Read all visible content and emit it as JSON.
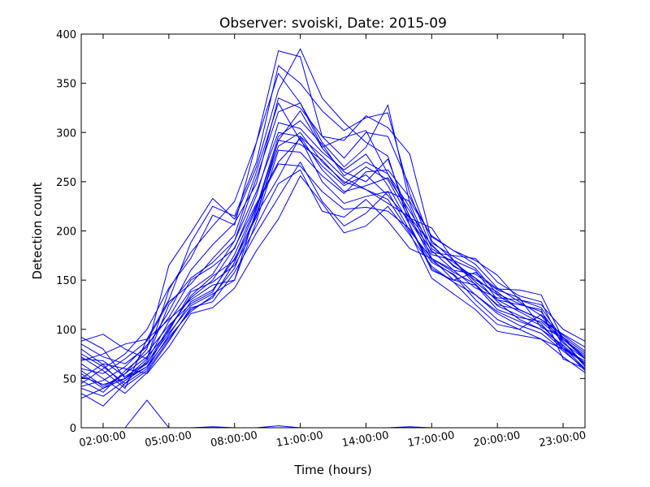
{
  "chart_data": {
    "type": "line",
    "title": "Observer: svoiski, Date: 2015-09",
    "xlabel": "Time (hours)",
    "ylabel": "Detection count",
    "xlim": [
      1,
      24
    ],
    "ylim": [
      0,
      400
    ],
    "x_ticks": [
      2,
      5,
      8,
      11,
      14,
      17,
      20,
      23
    ],
    "x_tick_labels": [
      "02:00:00",
      "05:00:00",
      "08:00:00",
      "11:00:00",
      "14:00:00",
      "17:00:00",
      "20:00:00",
      "23:00:00"
    ],
    "y_ticks": [
      0,
      50,
      100,
      150,
      200,
      250,
      300,
      350,
      400
    ],
    "y_tick_labels": [
      "0",
      "50",
      "100",
      "150",
      "200",
      "250",
      "300",
      "350",
      "400"
    ],
    "line_color": "#0000ff",
    "grid": false,
    "x": [
      1,
      2,
      3,
      4,
      5,
      6,
      7,
      8,
      9,
      10,
      11,
      12,
      13,
      14,
      15,
      16,
      17,
      18,
      19,
      20,
      21,
      22,
      23,
      24
    ],
    "series": [
      {
        "values": [
          92,
          80,
          50,
          70,
          140,
          178,
          205,
          230,
          290,
          383,
          377,
          296,
          292,
          317,
          305,
          278,
          190,
          170,
          160,
          130,
          125,
          120,
          70,
          60
        ]
      },
      {
        "values": [
          58,
          42,
          55,
          80,
          165,
          198,
          233,
          212,
          265,
          343,
          385,
          335,
          310,
          290,
          276,
          205,
          160,
          150,
          158,
          141,
          140,
          135,
          90,
          72
        ]
      },
      {
        "values": [
          72,
          58,
          40,
          90,
          130,
          188,
          225,
          215,
          270,
          368,
          350,
          322,
          302,
          315,
          320,
          238,
          182,
          168,
          152,
          128,
          110,
          100,
          80,
          66
        ]
      },
      {
        "values": [
          45,
          60,
          75,
          100,
          142,
          172,
          216,
          206,
          290,
          360,
          330,
          285,
          295,
          302,
          258,
          215,
          170,
          155,
          130,
          110,
          100,
          90,
          80,
          58
        ]
      },
      {
        "values": [
          88,
          95,
          80,
          70,
          125,
          152,
          168,
          190,
          254,
          321,
          330,
          290,
          265,
          285,
          328,
          228,
          178,
          175,
          172,
          148,
          134,
          128,
          82,
          60
        ]
      },
      {
        "values": [
          68,
          75,
          85,
          90,
          110,
          130,
          145,
          150,
          222,
          292,
          322,
          284,
          260,
          250,
          273,
          213,
          203,
          170,
          145,
          125,
          120,
          110,
          90,
          70
        ]
      },
      {
        "values": [
          55,
          40,
          50,
          65,
          102,
          132,
          150,
          183,
          228,
          270,
          294,
          250,
          228,
          235,
          240,
          230,
          195,
          180,
          170,
          155,
          130,
          125,
          100,
          88
        ]
      },
      {
        "values": [
          40,
          32,
          48,
          62,
          92,
          118,
          134,
          162,
          217,
          254,
          296,
          262,
          240,
          246,
          254,
          220,
          185,
          165,
          150,
          138,
          120,
          110,
          95,
          82
        ]
      },
      {
        "values": [
          65,
          50,
          35,
          56,
          88,
          122,
          128,
          158,
          198,
          234,
          270,
          230,
          205,
          218,
          240,
          200,
          172,
          160,
          156,
          140,
          132,
          102,
          92,
          76
        ]
      },
      {
        "values": [
          30,
          40,
          55,
          72,
          98,
          138,
          148,
          165,
          205,
          248,
          262,
          220,
          214,
          232,
          210,
          182,
          172,
          150,
          145,
          120,
          112,
          108,
          88,
          62
        ]
      },
      {
        "values": [
          50,
          65,
          60,
          55,
          82,
          116,
          122,
          142,
          180,
          212,
          256,
          228,
          198,
          205,
          225,
          196,
          164,
          148,
          125,
          105,
          100,
          115,
          92,
          70
        ]
      },
      {
        "values": [
          75,
          62,
          45,
          60,
          94,
          128,
          140,
          172,
          214,
          292,
          288,
          272,
          248,
          265,
          252,
          212,
          180,
          160,
          142,
          132,
          130,
          122,
          90,
          74
        ]
      },
      {
        "values": [
          35,
          22,
          45,
          68,
          108,
          140,
          156,
          190,
          240,
          300,
          296,
          276,
          254,
          242,
          232,
          198,
          152,
          136,
          120,
          98,
          94,
          90,
          72,
          56
        ]
      },
      {
        "values": [
          85,
          72,
          65,
          82,
          118,
          160,
          186,
          208,
          248,
          335,
          325,
          296,
          274,
          300,
          296,
          245,
          188,
          174,
          162,
          136,
          126,
          118,
          88,
          64
        ]
      },
      {
        "values": [
          60,
          55,
          70,
          88,
          128,
          146,
          172,
          196,
          260,
          330,
          292,
          266,
          246,
          257,
          236,
          210,
          176,
          170,
          148,
          130,
          118,
          106,
          80,
          68
        ]
      },
      {
        "values": [
          48,
          36,
          58,
          76,
          104,
          126,
          138,
          176,
          226,
          268,
          266,
          240,
          222,
          224,
          220,
          202,
          168,
          156,
          135,
          116,
          104,
          96,
          78,
          60
        ]
      },
      {
        "values": [
          70,
          68,
          52,
          66,
          96,
          124,
          136,
          150,
          210,
          282,
          280,
          256,
          238,
          260,
          262,
          234,
          194,
          180,
          166,
          142,
          128,
          114,
          86,
          70
        ]
      },
      {
        "values": [
          42,
          48,
          62,
          84,
          112,
          150,
          164,
          182,
          236,
          310,
          304,
          280,
          262,
          278,
          246,
          206,
          162,
          148,
          135,
          118,
          108,
          100,
          84,
          64
        ]
      },
      {
        "values": [
          80,
          64,
          42,
          58,
          90,
          120,
          132,
          168,
          218,
          286,
          300,
          270,
          250,
          242,
          228,
          214,
          186,
          164,
          152,
          135,
          120,
          110,
          94,
          78
        ]
      },
      {
        "values": [
          52,
          44,
          50,
          62,
          100,
          134,
          154,
          170,
          224,
          296,
          312,
          288,
          256,
          270,
          258,
          224,
          172,
          158,
          146,
          124,
          114,
          104,
          82,
          66
        ]
      },
      {
        "values": [
          0,
          0,
          0,
          0,
          0,
          0,
          0,
          0,
          0,
          0,
          0,
          0,
          0,
          0,
          0,
          0,
          0,
          0,
          0,
          0,
          0,
          0,
          0,
          0
        ]
      },
      {
        "values": [
          0,
          0,
          0,
          28,
          0,
          0,
          1,
          0,
          0,
          2,
          0,
          0,
          0,
          0,
          0,
          1,
          0,
          0,
          0,
          0,
          0,
          0,
          0,
          0
        ]
      }
    ]
  }
}
